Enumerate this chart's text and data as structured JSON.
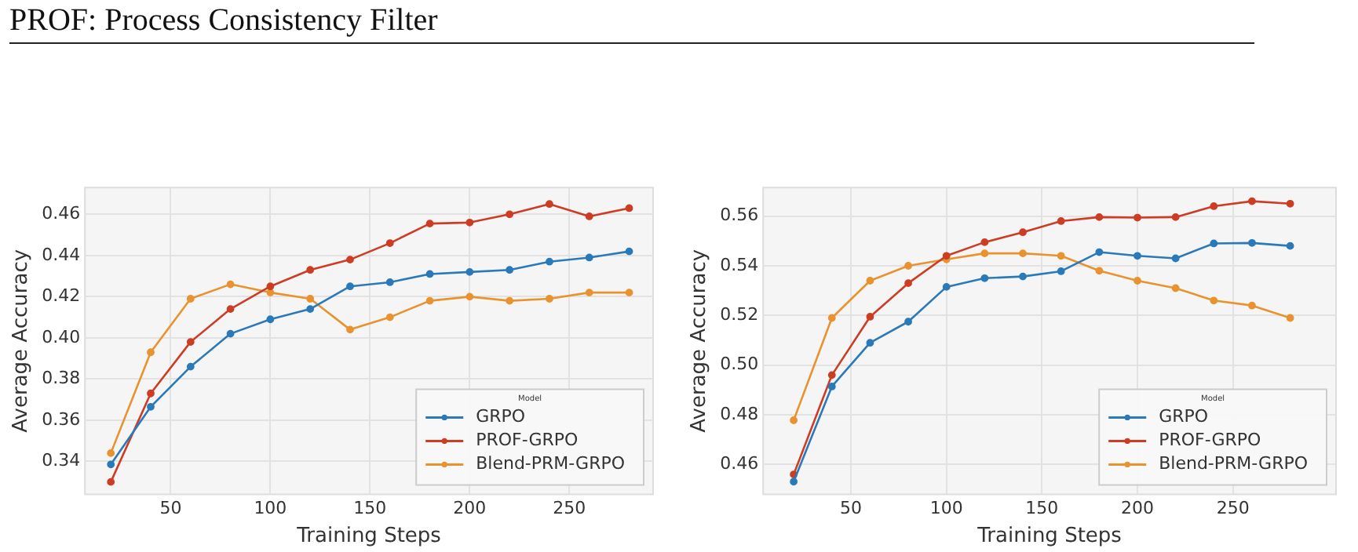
{
  "chart_data": [
    {
      "type": "line",
      "annotations": [
        "PROF: Process Consistency Filter"
      ],
      "xlabel": "Training Steps",
      "ylabel": "Average Accuracy",
      "legend_title": "Model",
      "legend": "bottom right",
      "grid": true,
      "marker": "circle",
      "line_style": "solid",
      "x": [
        20,
        40,
        60,
        80,
        100,
        120,
        140,
        160,
        180,
        200,
        220,
        240,
        260,
        280
      ],
      "xlim": [
        7,
        292
      ],
      "xticks": [
        50,
        100,
        150,
        200,
        250
      ],
      "ylim": [
        0.324,
        0.473
      ],
      "yticks": [
        0.34,
        0.36,
        0.38,
        {
          "value": 0.4,
          "label": "0.40"
        },
        0.42,
        0.44,
        0.46
      ],
      "series": [
        {
          "name": "GRPO",
          "color": "#2a7ab9",
          "values": [
            0.3385,
            0.3665,
            0.386,
            0.402,
            0.409,
            0.414,
            0.425,
            0.427,
            0.431,
            0.432,
            0.433,
            0.437,
            0.439,
            0.442
          ]
        },
        {
          "name": "PROF-GRPO",
          "color": "#cc3d24",
          "values": [
            0.33,
            0.373,
            0.398,
            0.414,
            0.425,
            0.433,
            0.438,
            0.446,
            0.4555,
            0.456,
            0.46,
            0.465,
            0.459,
            0.463
          ]
        },
        {
          "name": "Blend-PRM-GRPO",
          "color": "#e89330",
          "values": [
            0.344,
            0.393,
            0.419,
            0.426,
            0.422,
            0.419,
            0.404,
            0.41,
            0.418,
            0.42,
            0.418,
            0.419,
            0.422,
            0.422
          ]
        }
      ]
    },
    {
      "type": "line",
      "xlabel": "Training Steps",
      "ylabel": "Average Accuracy",
      "legend_title": "Model",
      "legend": "bottom right",
      "grid": true,
      "marker": "circle",
      "line_style": "solid",
      "x": [
        20,
        40,
        60,
        80,
        100,
        120,
        140,
        160,
        180,
        200,
        220,
        240,
        260,
        280
      ],
      "xlim": [
        4,
        304
      ],
      "xticks": [
        50,
        100,
        150,
        200,
        250
      ],
      "ylim": [
        0.448,
        0.5715
      ],
      "yticks": [
        0.46,
        0.48,
        {
          "value": 0.5,
          "label": "0.50"
        },
        0.52,
        0.54,
        0.56
      ],
      "series": [
        {
          "name": "GRPO",
          "color": "#2a7ab9",
          "values": [
            0.4531,
            0.4914,
            0.509,
            0.5175,
            0.5315,
            0.535,
            0.5357,
            0.5378,
            0.5455,
            0.544,
            0.543,
            0.549,
            0.5492,
            0.548
          ]
        },
        {
          "name": "PROF-GRPO",
          "color": "#cc3d24",
          "values": [
            0.456,
            0.496,
            0.5195,
            0.533,
            0.544,
            0.5495,
            0.5535,
            0.558,
            0.5596,
            0.5594,
            0.5596,
            0.564,
            0.566,
            0.565
          ]
        },
        {
          "name": "Blend-PRM-GRPO",
          "color": "#e89330",
          "values": [
            0.4778,
            0.519,
            0.534,
            0.54,
            0.5426,
            0.545,
            0.545,
            0.544,
            0.538,
            0.534,
            0.531,
            0.526,
            0.524,
            0.519
          ]
        }
      ]
    }
  ]
}
